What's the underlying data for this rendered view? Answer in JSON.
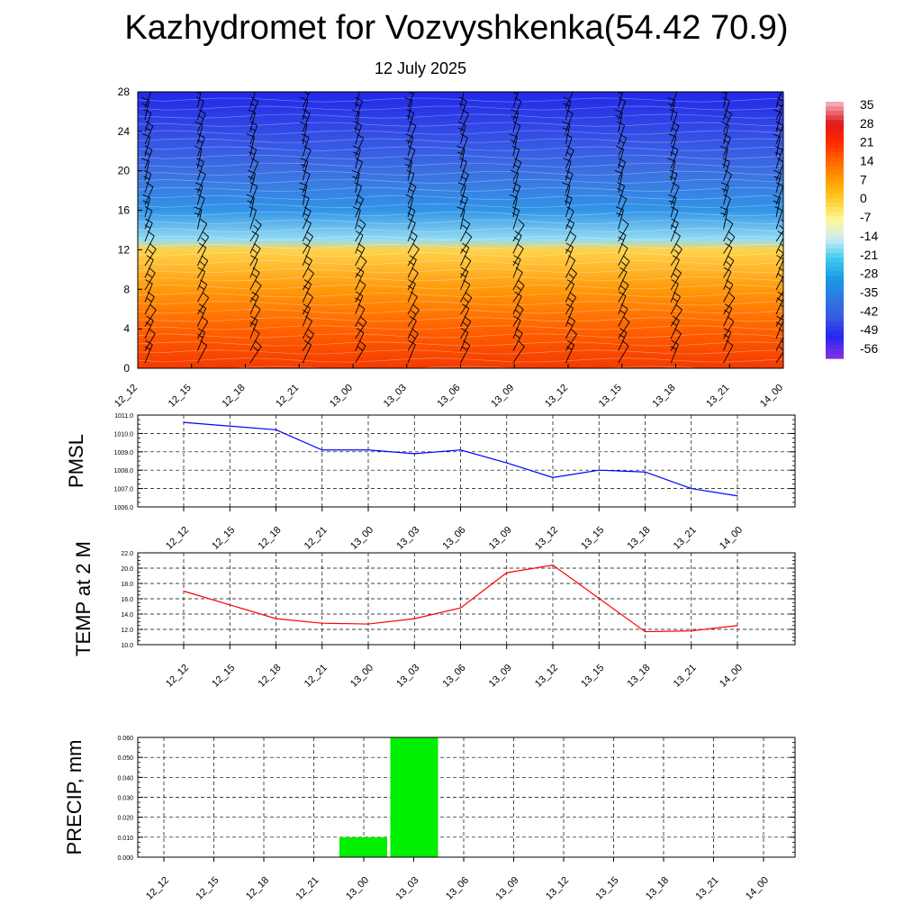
{
  "header": {
    "title": "Kazhydromet for Vozvyshkenka(54.42 70.9)",
    "subtitle": "12 July 2025"
  },
  "chart_data": [
    {
      "type": "heatmap",
      "x_tick_labels": [
        "12_12",
        "12_15",
        "12_18",
        "12_21",
        "13_00",
        "13_03",
        "13_06",
        "13_09",
        "13_12",
        "13_15",
        "13_18",
        "13_21",
        "14_00"
      ],
      "y_ticks": [
        0,
        4,
        8,
        12,
        16,
        20,
        24,
        28
      ],
      "ylim": [
        0,
        28
      ],
      "colorbar_labels": [
        "35",
        "28",
        "21",
        "14",
        "7",
        "0",
        "-7",
        "-14",
        "-21",
        "-28",
        "-35",
        "-42",
        "-49",
        "-56"
      ],
      "colorbar_colors": [
        "#f4a8b4",
        "#e01818",
        "#ff2a00",
        "#ff6a00",
        "#ffa000",
        "#ffd030",
        "#fff8a0",
        "#c8ecf4",
        "#40c8f0",
        "#1a9ae6",
        "#2e78e0",
        "#3a5ae0",
        "#2626f0",
        "#7a30e6"
      ],
      "field_description": "temperature vs height level and time with wind barbs",
      "temperature_profile": [
        {
          "level": 0,
          "temp": 22
        },
        {
          "level": 4,
          "temp": 17
        },
        {
          "level": 8,
          "temp": 10
        },
        {
          "level": 12,
          "temp": 2
        },
        {
          "level": 13,
          "temp": -16
        },
        {
          "level": 16,
          "temp": -30
        },
        {
          "level": 20,
          "temp": -38
        },
        {
          "level": 24,
          "temp": -46
        },
        {
          "level": 28,
          "temp": -56
        }
      ],
      "grid": false,
      "barbs": true
    },
    {
      "type": "line",
      "ylabel": "PMSL",
      "x": [
        "12_12",
        "12_15",
        "12_18",
        "12_21",
        "13_00",
        "13_03",
        "13_06",
        "13_09",
        "13_12",
        "13_15",
        "13_18",
        "13_21",
        "14_00"
      ],
      "series": [
        {
          "color": "#0000ff",
          "values": [
            1010.6,
            null,
            1010.2,
            1009.1,
            1009.1,
            1008.9,
            1009.1,
            1008.4,
            1007.6,
            1008.0,
            1007.9,
            1007.0,
            1006.6
          ]
        }
      ],
      "y_ticks": [
        "1006.0",
        "1007.0",
        "1008.0",
        "1009.0",
        "1010.0",
        "1011.0"
      ],
      "ylim": [
        1006,
        1011
      ],
      "grid": true
    },
    {
      "type": "line",
      "ylabel": "TEMP at 2 M",
      "x": [
        "12_12",
        "12_15",
        "12_18",
        "12_21",
        "13_00",
        "13_03",
        "13_06",
        "13_09",
        "13_12",
        "13_15",
        "13_18",
        "13_21",
        "14_00"
      ],
      "series": [
        {
          "color": "#ff0000",
          "values": [
            17.0,
            null,
            13.4,
            12.8,
            12.7,
            13.4,
            14.8,
            19.4,
            20.4,
            null,
            11.7,
            11.8,
            12.5
          ]
        }
      ],
      "y_ticks": [
        "10.0",
        "12.0",
        "14.0",
        "16.0",
        "18.0",
        "20.0",
        "22.0"
      ],
      "ylim": [
        10,
        22
      ],
      "grid": true
    },
    {
      "type": "bar",
      "ylabel": "PRECIP, mm",
      "categories": [
        "12_12",
        "12_15",
        "12_18",
        "12_21",
        "13_00",
        "13_03",
        "13_06",
        "13_09",
        "13_12",
        "13_15",
        "13_18",
        "13_21",
        "14_00"
      ],
      "values": [
        0,
        0,
        0,
        0,
        0.01,
        0.06,
        0,
        0,
        0,
        0,
        0,
        0,
        0
      ],
      "bar_color": "#00ee00",
      "y_ticks": [
        "0.000",
        "0.010",
        "0.020",
        "0.030",
        "0.040",
        "0.050",
        "0.060"
      ],
      "ylim": [
        0,
        0.06
      ],
      "grid": true
    }
  ]
}
